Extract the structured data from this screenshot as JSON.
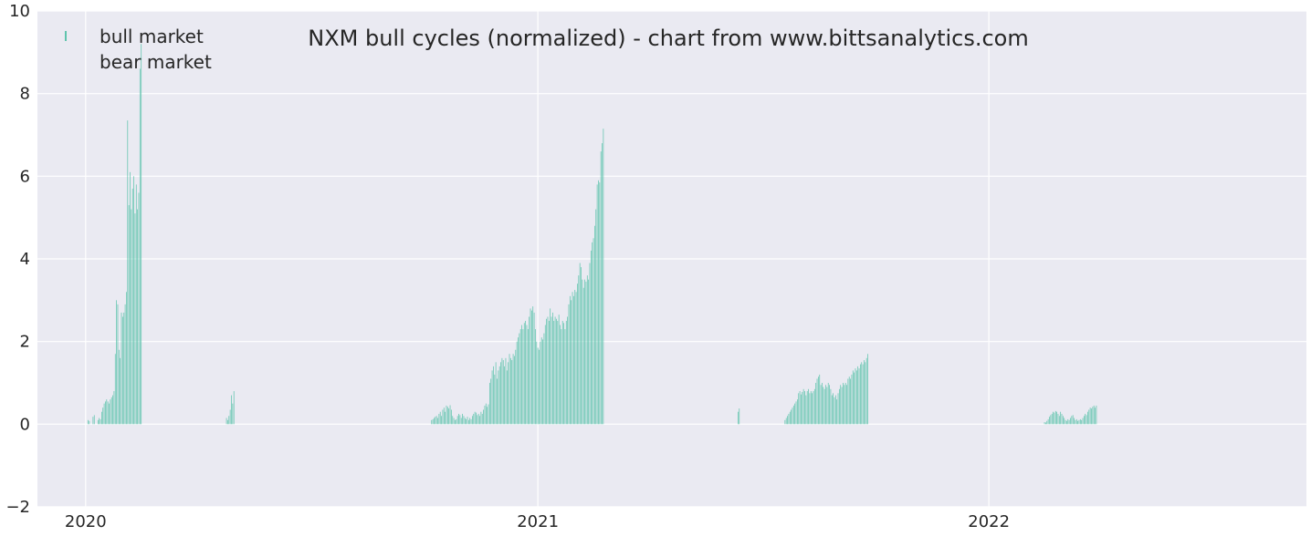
{
  "chart_data": {
    "type": "bar",
    "title": "NXM bull cycles (normalized)  - chart from www.bittsanalytics.com",
    "xlabel": "",
    "ylabel": "",
    "ylim": [
      -2,
      10
    ],
    "xlim": [
      "2019-11-23",
      "2022-09-15"
    ],
    "yticks": [
      "−2",
      "0",
      "2",
      "4",
      "6",
      "8",
      "10"
    ],
    "xticks": [
      {
        "date": "2020-01-01",
        "label": "2020"
      },
      {
        "date": "2021-01-01",
        "label": "2021"
      },
      {
        "date": "2022-01-01",
        "label": "2022"
      }
    ],
    "grid": true,
    "legend": "top-left",
    "colors": {
      "bull": "#5fc4ad",
      "bear": "#e8a0a0",
      "background": "#eaeaf2",
      "grid": "#ffffff"
    },
    "series": [
      {
        "name": "bull market",
        "segments": [
          {
            "start": "2020-01-03",
            "values": [
              0.1,
              0.08,
              0,
              0,
              0.18,
              0.22
            ]
          },
          {
            "start": "2020-01-11",
            "values": [
              0.1,
              0.15,
              0.12,
              0.3,
              0.4,
              0.5,
              0.55,
              0.6,
              0.55,
              0.5,
              0.6,
              0.65,
              0.7,
              0.8,
              1.7,
              3.0,
              2.9,
              1.8,
              1.6,
              2.7,
              2.6,
              2.7,
              2.9,
              3.2,
              7.35,
              5.3,
              6.1,
              5.2,
              5.7,
              6.0,
              5.1,
              5.8,
              5.2,
              5.6,
              8.6,
              9.2
            ]
          },
          {
            "start": "2020-04-24",
            "values": [
              0.15,
              0.1,
              0.2,
              0.35,
              0.7,
              0.5,
              0.8
            ]
          },
          {
            "start": "2020-10-07",
            "values": [
              0.1,
              0.12,
              0.15,
              0.18,
              0.2,
              0.15,
              0.25,
              0.3,
              0.2,
              0.35,
              0.4,
              0.3,
              0.45,
              0.42,
              0.38,
              0.46,
              0.35,
              0.2,
              0.15,
              0.1,
              0.12,
              0.2,
              0.25,
              0.22,
              0.15,
              0.25,
              0.2,
              0.15,
              0.12,
              0.18,
              0.1,
              0.15,
              0.12,
              0.2,
              0.25,
              0.3,
              0.28,
              0.22,
              0.25,
              0.2,
              0.3,
              0.25,
              0.35,
              0.45,
              0.5,
              0.42,
              0.48,
              1.0,
              1.1,
              1.3,
              1.4,
              1.2,
              1.5,
              1.1,
              1.3,
              1.4,
              1.5,
              1.6,
              1.55,
              1.4,
              1.6,
              1.3,
              1.5,
              1.7,
              1.6,
              1.55,
              1.7,
              1.65,
              1.8,
              2.0,
              2.1,
              2.2,
              2.3,
              2.4,
              2.3,
              2.45,
              2.5,
              2.4,
              2.3,
              2.6,
              2.8,
              2.75,
              2.85,
              2.7,
              2.3,
              2.0,
              1.85,
              1.8,
              2.0,
              2.1,
              2.05,
              2.2,
              2.4,
              2.55,
              2.6,
              2.5,
              2.8,
              2.6,
              2.7,
              2.5,
              2.6,
              2.55,
              2.5,
              2.65,
              2.4,
              2.3,
              2.5,
              2.45,
              2.3,
              2.5,
              2.6,
              2.9,
              3.1,
              3.0,
              3.2,
              3.1,
              3.25,
              3.2,
              3.4,
              3.6,
              3.9,
              3.8,
              3.5,
              3.3,
              3.5,
              3.45,
              3.6,
              3.5,
              3.9,
              4.2,
              4.4,
              4.5,
              4.8,
              5.2,
              5.8,
              5.9,
              5.85,
              6.6,
              6.8,
              7.15
            ]
          },
          {
            "start": "2021-06-12",
            "values": [
              0.3,
              0.38
            ]
          },
          {
            "start": "2021-07-20",
            "values": [
              0.1,
              0.15,
              0.2,
              0.25,
              0.3,
              0.35,
              0.4,
              0.45,
              0.5,
              0.55,
              0.6,
              0.75,
              0.8,
              0.72,
              0.78,
              0.85,
              0.8,
              0.7,
              0.8,
              0.85,
              0.75,
              0.8,
              0.75,
              0.8,
              0.85,
              1.0,
              1.1,
              1.15,
              1.2,
              0.95,
              1.0,
              0.9,
              0.85,
              0.95,
              0.9,
              1.0,
              0.95,
              0.85,
              0.7,
              0.75,
              0.65,
              0.7,
              0.6,
              0.75,
              0.85,
              0.95,
              0.9,
              1.0,
              0.95,
              1.0,
              0.95,
              1.1,
              1.15,
              1.1,
              1.2,
              1.3,
              1.25,
              1.35,
              1.3,
              1.4,
              1.35,
              1.45,
              1.5,
              1.45,
              1.55,
              1.5,
              1.6,
              1.7
            ]
          },
          {
            "start": "2022-02-15",
            "values": [
              0.05,
              0.04,
              0.08,
              0.12,
              0.18,
              0.22,
              0.25,
              0.3,
              0.28,
              0.32,
              0.3,
              0.25,
              0.2,
              0.3,
              0.25,
              0.2,
              0.15,
              0.1,
              0.08,
              0.12,
              0.1,
              0.15,
              0.2,
              0.22,
              0.15,
              0.1,
              0.12,
              0.08,
              0.1,
              0.12,
              0.1,
              0.15,
              0.2,
              0.25,
              0.22,
              0.3,
              0.35,
              0.4,
              0.38,
              0.42,
              0.45,
              0.4,
              0.45
            ]
          }
        ]
      },
      {
        "name": "bear market",
        "segments": []
      }
    ]
  }
}
